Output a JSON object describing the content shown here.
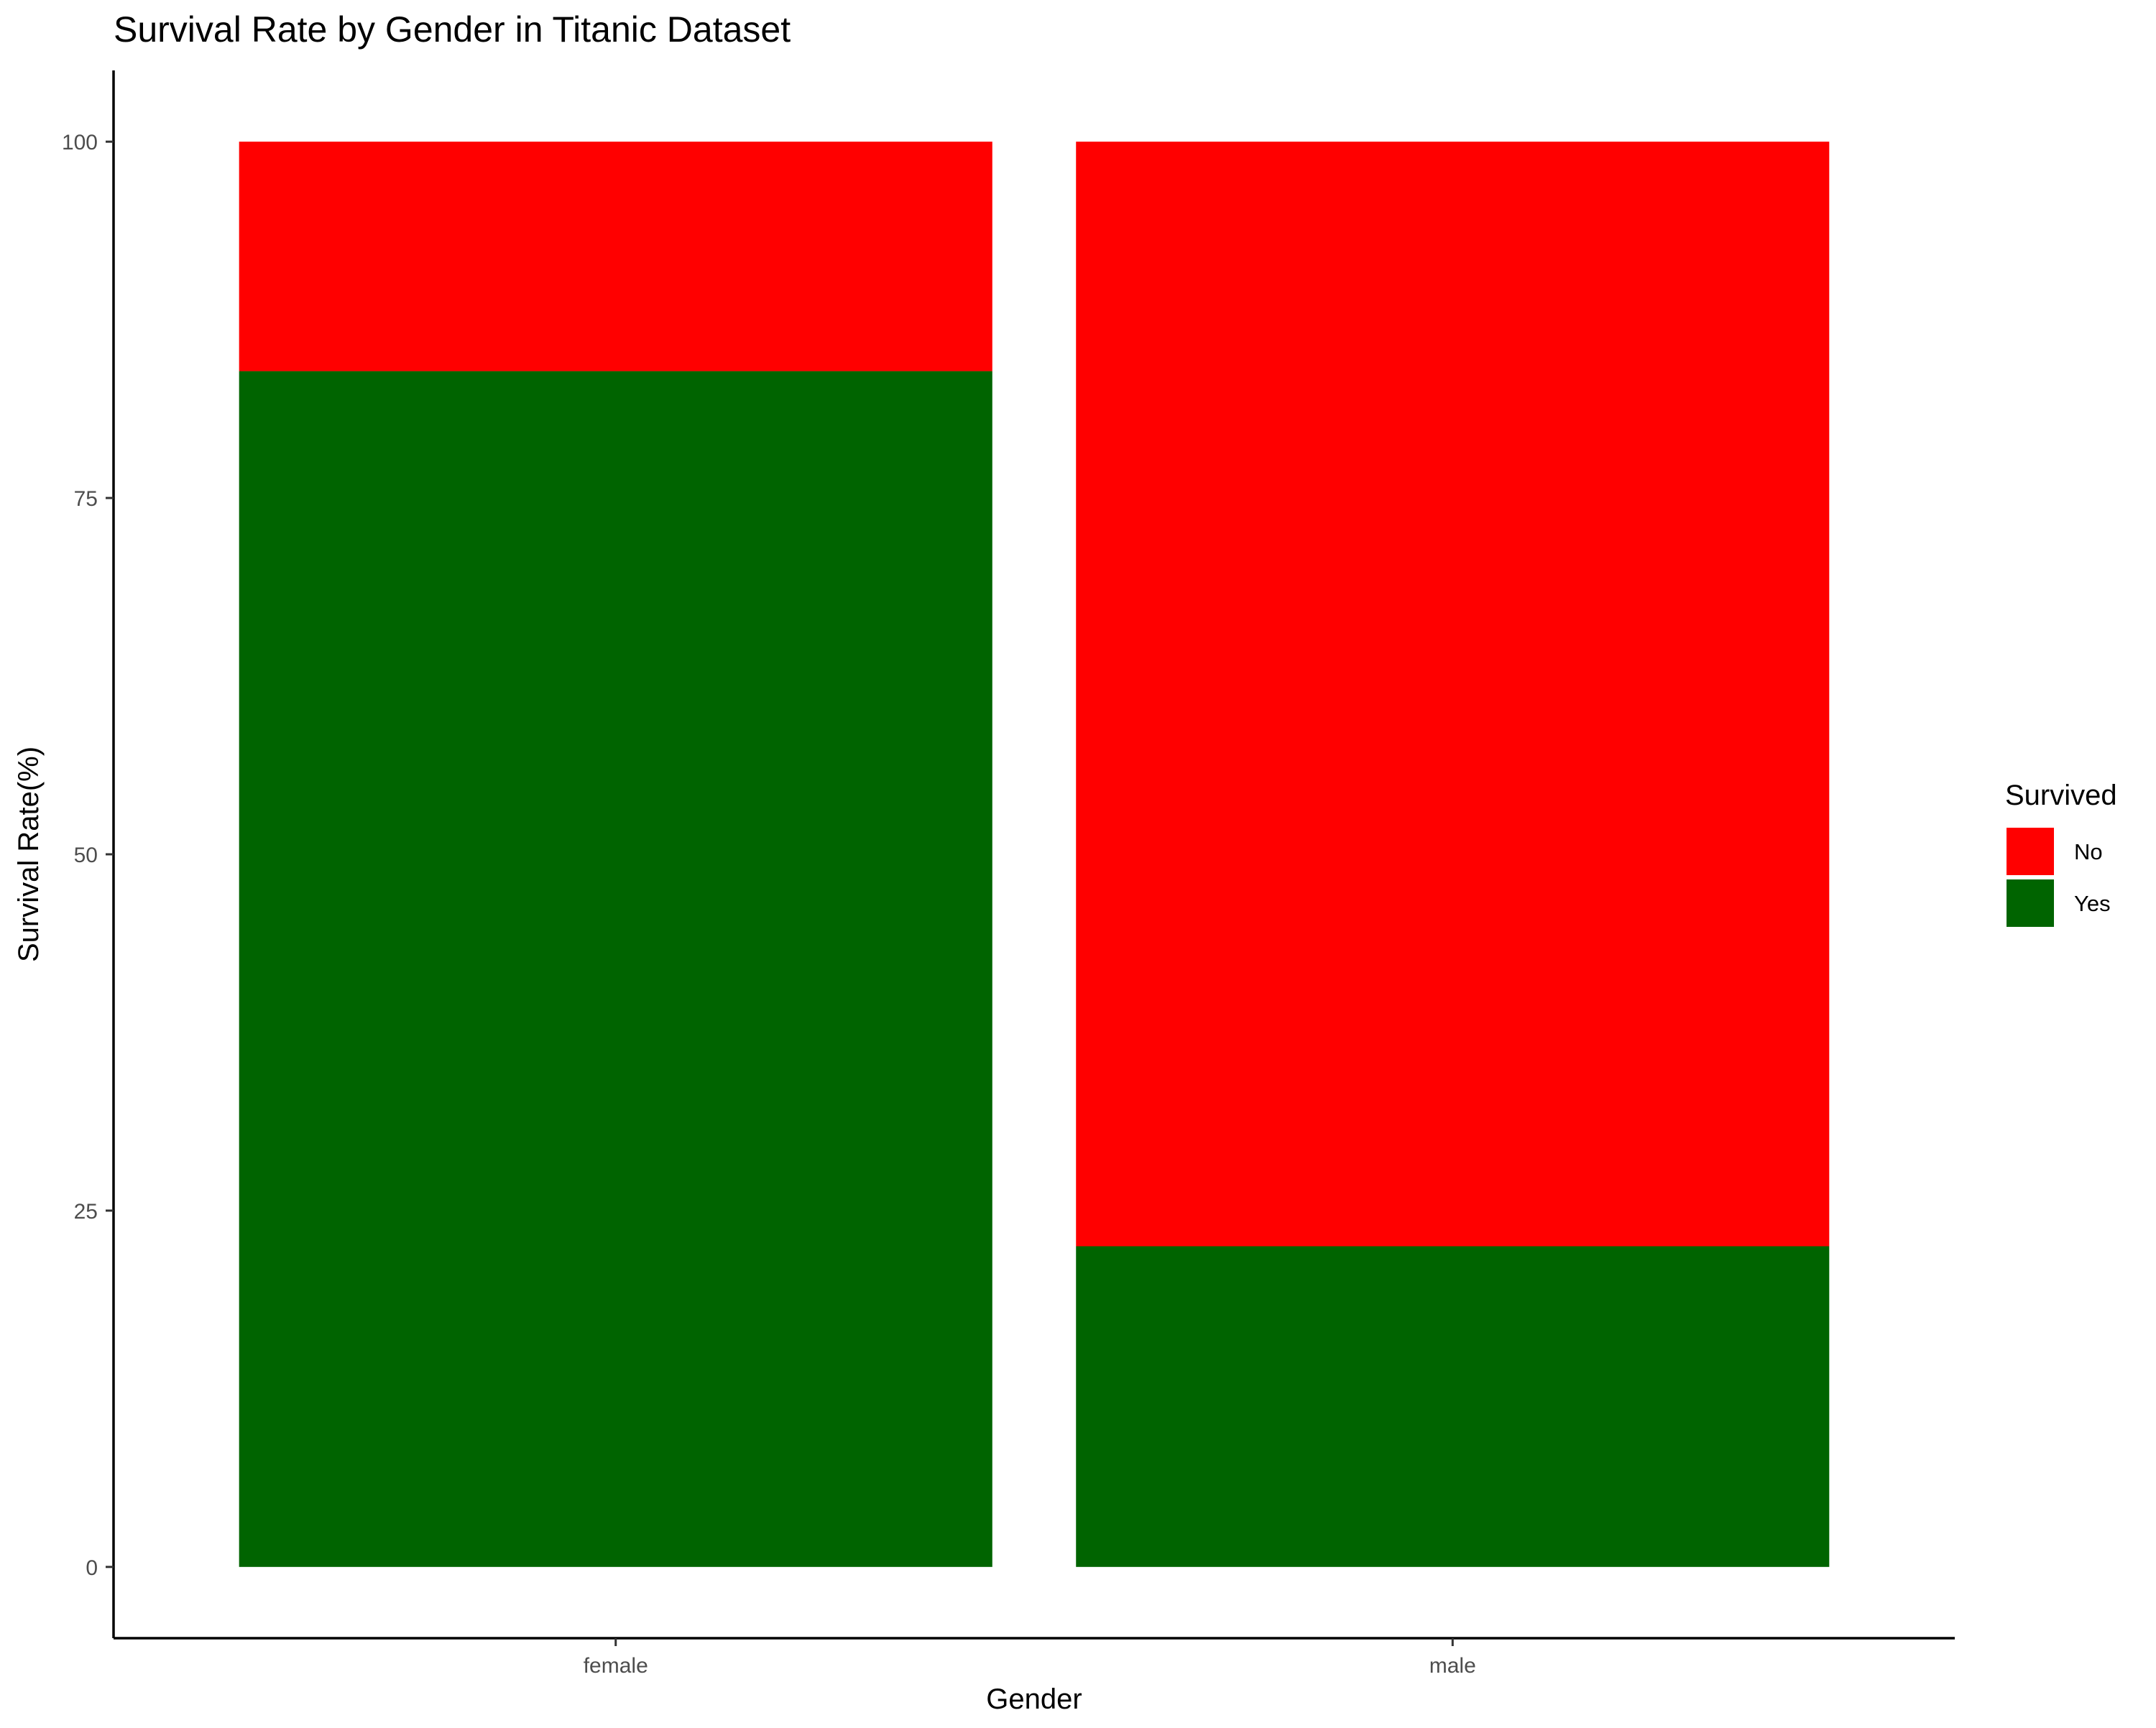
{
  "chart_data": {
    "type": "bar",
    "stacked": true,
    "title": "Survival Rate by Gender in Titanic Dataset",
    "xlabel": "Gender",
    "ylabel": "Survival Rate(%)",
    "categories": [
      "female",
      "male"
    ],
    "series": [
      {
        "name": "Yes",
        "values": [
          83.9,
          22.5
        ],
        "color": "#006400"
      },
      {
        "name": "No",
        "values": [
          16.1,
          77.5
        ],
        "color": "#FF0000"
      }
    ],
    "ylim": [
      -5,
      105
    ],
    "yticks": [
      0,
      25,
      50,
      75,
      100
    ],
    "grid": false,
    "legend": {
      "title": "Survived",
      "placement": "right",
      "entries": [
        {
          "label": "No",
          "color": "#FF0000"
        },
        {
          "label": "Yes",
          "color": "#006400"
        }
      ]
    }
  }
}
